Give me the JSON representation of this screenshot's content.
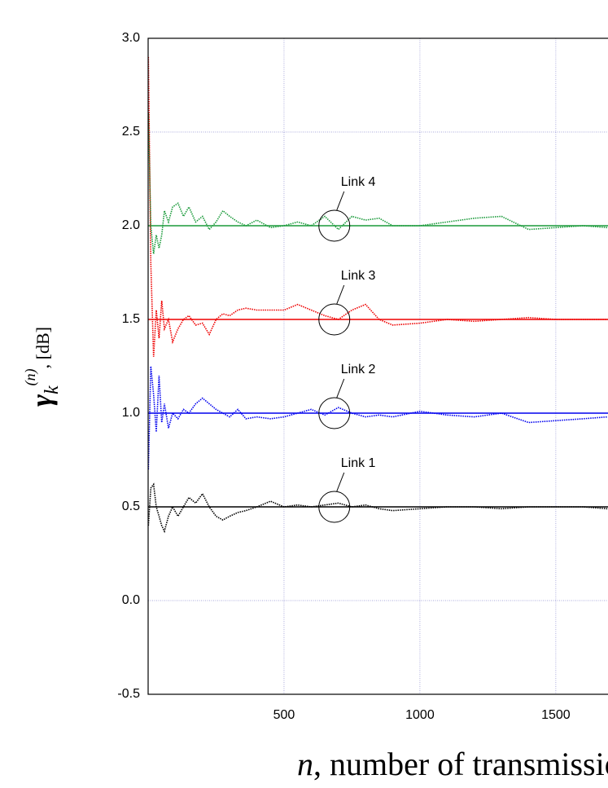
{
  "chart_data": {
    "type": "line",
    "xlabel": {
      "var": "n",
      "text": ", number of transmissions"
    },
    "ylabel": {
      "symbol": "γ",
      "sub": "k",
      "sup": "(n)",
      "unit": ", [dB]"
    },
    "xlim": [
      0,
      1692
    ],
    "ylim": [
      -0.5,
      3.0
    ],
    "xticks": [
      500,
      1000,
      1500
    ],
    "yticks": [
      {
        "value": -0.5,
        "label": "-0.5"
      },
      {
        "value": 0,
        "label": "0.0"
      },
      {
        "value": 0.5,
        "label": "0.5"
      },
      {
        "value": 1,
        "label": "1.0"
      },
      {
        "value": 1.5,
        "label": "1.5"
      },
      {
        "value": 2,
        "label": "2.0"
      },
      {
        "value": 2.5,
        "label": "2.5"
      },
      {
        "value": 3,
        "label": "3.0"
      }
    ],
    "grid": true,
    "x": [
      1,
      10,
      20,
      30,
      40,
      50,
      60,
      75,
      90,
      110,
      130,
      150,
      175,
      200,
      225,
      250,
      275,
      300,
      330,
      360,
      400,
      450,
      500,
      550,
      600,
      650,
      700,
      750,
      800,
      850,
      900,
      1000,
      1100,
      1200,
      1300,
      1400,
      1500,
      1600,
      1690
    ],
    "series": [
      {
        "color": "#000000",
        "values": [
          0.4,
          0.6,
          0.62,
          0.5,
          0.45,
          0.4,
          0.37,
          0.45,
          0.5,
          0.45,
          0.5,
          0.55,
          0.52,
          0.57,
          0.5,
          0.45,
          0.43,
          0.45,
          0.47,
          0.48,
          0.5,
          0.53,
          0.5,
          0.51,
          0.5,
          0.51,
          0.52,
          0.5,
          0.51,
          0.49,
          0.48,
          0.49,
          0.5,
          0.5,
          0.49,
          0.5,
          0.5,
          0.5,
          0.49
        ]
      },
      {
        "color": "#0000ee",
        "values": [
          0.7,
          1.25,
          1.1,
          0.9,
          1.2,
          0.95,
          1.05,
          0.92,
          1.0,
          0.97,
          1.02,
          1.0,
          1.05,
          1.08,
          1.05,
          1.02,
          1.0,
          0.98,
          1.02,
          0.97,
          0.98,
          0.97,
          0.98,
          1.0,
          1.02,
          0.99,
          1.03,
          1.0,
          0.98,
          0.99,
          0.98,
          1.01,
          0.99,
          0.98,
          1.0,
          0.95,
          0.96,
          0.97,
          0.98
        ]
      },
      {
        "color": "#ee0000",
        "values": [
          2.9,
          1.8,
          1.3,
          1.55,
          1.4,
          1.6,
          1.45,
          1.5,
          1.38,
          1.45,
          1.5,
          1.52,
          1.47,
          1.48,
          1.42,
          1.5,
          1.53,
          1.52,
          1.55,
          1.56,
          1.55,
          1.55,
          1.55,
          1.58,
          1.55,
          1.52,
          1.5,
          1.55,
          1.58,
          1.5,
          1.47,
          1.48,
          1.5,
          1.49,
          1.5,
          1.51,
          1.5,
          1.5,
          1.5
        ]
      },
      {
        "color": "#1a9a3a",
        "values": [
          2.6,
          2.0,
          1.85,
          1.95,
          1.88,
          1.95,
          2.08,
          2.02,
          2.1,
          2.12,
          2.05,
          2.1,
          2.02,
          2.05,
          1.98,
          2.02,
          2.08,
          2.05,
          2.02,
          2.0,
          2.03,
          1.99,
          2.0,
          2.02,
          2.0,
          2.05,
          1.98,
          2.05,
          2.03,
          2.04,
          2.0,
          2.0,
          2.02,
          2.04,
          2.05,
          1.98,
          1.99,
          2.0,
          1.99
        ]
      }
    ],
    "reference_lines": [
      {
        "value": 0.5,
        "color": "#000000"
      },
      {
        "value": 1.0,
        "color": "#0000ee"
      },
      {
        "value": 1.5,
        "color": "#ee0000"
      },
      {
        "value": 2.0,
        "color": "#1a9a3a"
      }
    ],
    "annotations": [
      {
        "text": "Link 1",
        "x": 685,
        "y": 0.5
      },
      {
        "text": "Link 2",
        "x": 685,
        "y": 1.0
      },
      {
        "text": "Link 3",
        "x": 685,
        "y": 1.5
      },
      {
        "text": "Link 4",
        "x": 685,
        "y": 2.0
      }
    ]
  }
}
